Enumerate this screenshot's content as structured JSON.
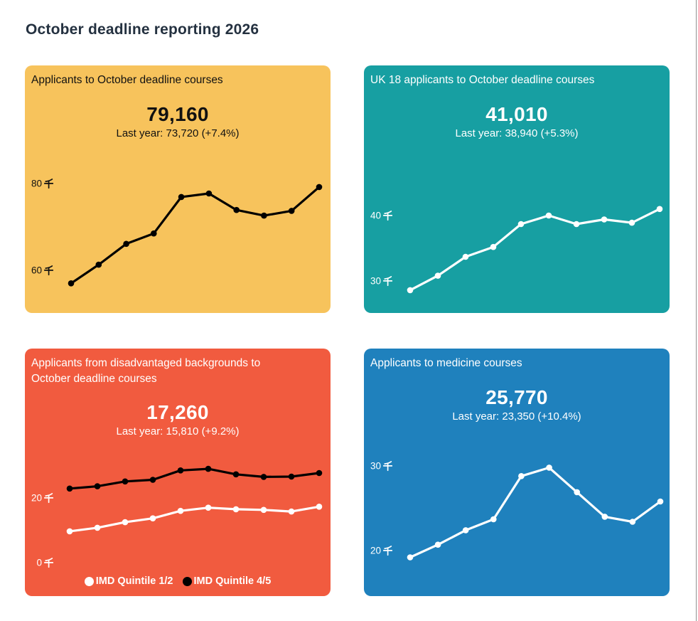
{
  "page": {
    "title": "October deadline reporting 2026",
    "title_color": "#243140",
    "background": "#ffffff",
    "right_border_color": "#909090"
  },
  "cards": [
    {
      "id": "applicants-total",
      "title": "Applicants to October deadline courses",
      "headline": "79,160",
      "last_year": "Last year: 73,720 (+7.4%)",
      "bg_color": "#f7c35c",
      "text_color": "#111111"
    },
    {
      "id": "uk-18-applicants",
      "title": "UK 18 applicants to October deadline courses",
      "headline": "41,010",
      "last_year": "Last year: 38,940 (+5.3%)",
      "bg_color": "#179fa2",
      "text_color": "#ffffff"
    },
    {
      "id": "disadvantaged-applicants",
      "title": "Applicants from disadvantaged backgrounds to October deadline courses",
      "headline": "17,260",
      "last_year": "Last year: 15,810 (+9.2%)",
      "bg_color": "#f15b3f",
      "text_color": "#ffffff"
    },
    {
      "id": "medicine-applicants",
      "title": "Applicants to medicine courses",
      "headline": "25,770",
      "last_year": "Last year: 23,350 (+10.4%)",
      "bg_color": "#1f81bd",
      "text_color": "#ffffff"
    }
  ],
  "chart_data": [
    {
      "type": "line",
      "title": "Applicants to October deadline courses",
      "unit": "thousands",
      "xlabel": "",
      "ylabel": "",
      "ylim_thousands": [
        55,
        82
      ],
      "grid": false,
      "ticks": [
        {
          "value": 80,
          "label": "80 千"
        },
        {
          "value": 60,
          "label": "60 千"
        }
      ],
      "series": [
        {
          "name": "applicants",
          "color": "#000000",
          "marker": "circle",
          "values_thousands": [
            57.0,
            61.3,
            66.1,
            68.5,
            76.9,
            77.7,
            73.9,
            72.6,
            73.7,
            79.2
          ]
        }
      ]
    },
    {
      "type": "line",
      "title": "UK 18 applicants to October deadline courses",
      "unit": "thousands",
      "xlabel": "",
      "ylabel": "",
      "ylim_thousands": [
        27,
        43
      ],
      "grid": false,
      "ticks": [
        {
          "value": 40,
          "label": "40 千"
        },
        {
          "value": 30,
          "label": "30 千"
        }
      ],
      "series": [
        {
          "name": "uk-18-applicants",
          "color": "#ffffff",
          "marker": "circle",
          "values_thousands": [
            28.6,
            30.8,
            33.7,
            35.2,
            38.7,
            40.0,
            38.7,
            39.4,
            38.9,
            41.0
          ]
        }
      ]
    },
    {
      "type": "line",
      "title": "Applicants from disadvantaged backgrounds to October deadline courses",
      "unit": "thousands",
      "xlabel": "",
      "ylabel": "",
      "ylim_thousands": [
        0,
        31
      ],
      "grid": false,
      "ticks": [
        {
          "value": 20,
          "label": "20 千"
        },
        {
          "value": 0,
          "label": "0 千"
        }
      ],
      "series": [
        {
          "name": "IMD Quintile 1/2",
          "color": "#ffffff",
          "marker": "circle",
          "values_thousands": [
            9.7,
            10.8,
            12.5,
            13.7,
            16.0,
            17.0,
            16.5,
            16.3,
            15.8,
            17.3
          ]
        },
        {
          "name": "IMD Quintile 4/5",
          "color": "#000000",
          "marker": "circle",
          "values_thousands": [
            22.9,
            23.6,
            25.1,
            25.6,
            28.5,
            29.0,
            27.3,
            26.5,
            26.6,
            27.7
          ]
        }
      ],
      "legend": {
        "position": "bottom",
        "items": [
          {
            "label": "IMD Quintile 1/2",
            "color": "#ffffff"
          },
          {
            "label": "IMD Quintile 4/5",
            "color": "#000000"
          }
        ]
      }
    },
    {
      "type": "line",
      "title": "Applicants to medicine courses",
      "unit": "thousands",
      "xlabel": "",
      "ylabel": "",
      "ylim_thousands": [
        18,
        31
      ],
      "grid": false,
      "ticks": [
        {
          "value": 30,
          "label": "30 千"
        },
        {
          "value": 20,
          "label": "20 千"
        }
      ],
      "series": [
        {
          "name": "medicine-applicants",
          "color": "#ffffff",
          "marker": "circle",
          "values_thousands": [
            19.2,
            20.7,
            22.4,
            23.7,
            28.8,
            29.8,
            26.9,
            24.0,
            23.4,
            25.8
          ]
        }
      ]
    }
  ]
}
